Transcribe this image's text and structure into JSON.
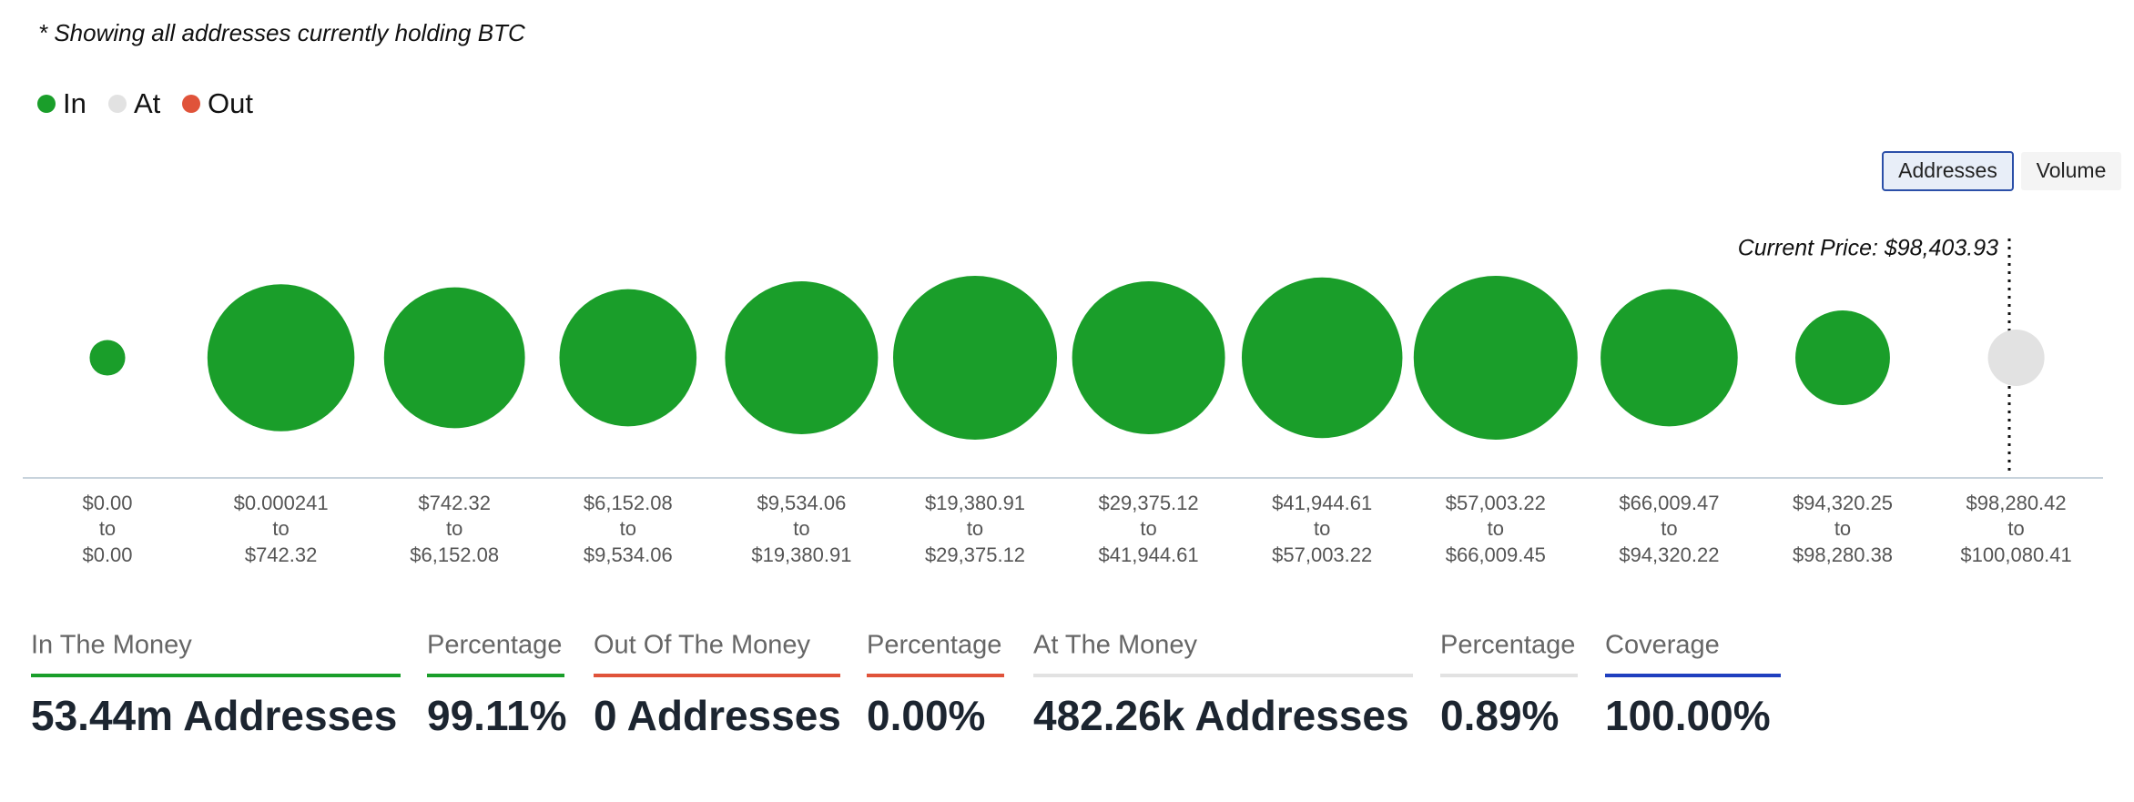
{
  "chart_data": {
    "type": "bubble",
    "note": "* Showing all addresses currently holding BTC",
    "toggle": {
      "options": [
        "Addresses",
        "Volume"
      ],
      "active": 0
    },
    "annotation": "Current Price: $98,403.93",
    "range_from": [
      "$0.00",
      "$0.000241",
      "$742.32",
      "$6,152.08",
      "$9,534.06",
      "$19,380.91",
      "$29,375.12",
      "$41,944.61",
      "$57,003.22",
      "$66,009.47",
      "$94,320.25",
      "$98,280.42"
    ],
    "range_word": "to",
    "range_to": [
      "$0.00",
      "$742.32",
      "$6,152.08",
      "$9,534.06",
      "$19,380.91",
      "$29,375.12",
      "$41,944.61",
      "$57,003.22",
      "$66,009.45",
      "$94,320.22",
      "$98,280.38",
      "$100,080.41"
    ],
    "series": [
      {
        "name": "In",
        "color": "#1a9e2a",
        "values": [
          0.1,
          5.4,
          4.9,
          4.6,
          5.9,
          6.9,
          5.9,
          6.6,
          6.9,
          4.6,
          1.9,
          null
        ]
      },
      {
        "name": "At",
        "color": "#e2e2e2",
        "values": [
          null,
          null,
          null,
          null,
          null,
          null,
          null,
          null,
          null,
          null,
          null,
          0.48
        ]
      },
      {
        "name": "Out",
        "color": "#e0533a",
        "values": [
          null,
          null,
          null,
          null,
          null,
          null,
          null,
          null,
          null,
          null,
          null,
          null
        ]
      }
    ],
    "stats": [
      {
        "label": "In The Money",
        "value": "53.44m Addresses",
        "color": "#1a9e2a"
      },
      {
        "label": "Percentage",
        "value": "99.11%",
        "color": "#1a9e2a"
      },
      {
        "label": "Out Of The Money",
        "value": "0 Addresses",
        "color": "#e0533a"
      },
      {
        "label": "Percentage",
        "value": "0.00%",
        "color": "#e0533a"
      },
      {
        "label": "At The Money",
        "value": "482.26k Addresses",
        "color": "#e2e2e2"
      },
      {
        "label": "Percentage",
        "value": "0.89%",
        "color": "#e2e2e2"
      },
      {
        "label": "Coverage",
        "value": "100.00%",
        "color": "#1f3fbf"
      }
    ]
  }
}
